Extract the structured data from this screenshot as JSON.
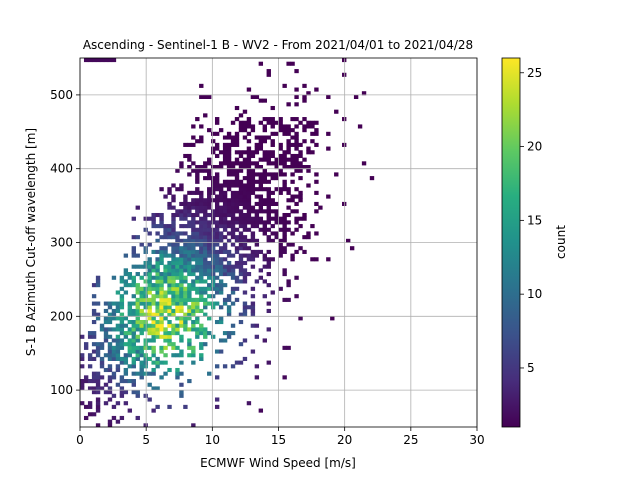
{
  "chart_data": {
    "type": "heatmap",
    "title": "Ascending - Sentinel-1 B - WV2 - From 2021/04/01 to 2021/04/28",
    "xlabel": "ECMWF Wind Speed [m/s]",
    "ylabel": "S-1 B Azimuth Cut-off wavelength [m]",
    "xlim": [
      0,
      30
    ],
    "ylim": [
      50,
      550
    ],
    "xticks": [
      "0",
      "5",
      "10",
      "15",
      "20",
      "25",
      "30"
    ],
    "xtick_values": [
      0,
      5,
      10,
      15,
      20,
      25,
      30
    ],
    "yticks": [
      "100",
      "200",
      "300",
      "400",
      "500"
    ],
    "ytick_values": [
      100,
      200,
      300,
      400,
      500
    ],
    "grid": true,
    "colormap": "viridis",
    "colorbar": {
      "label": "count",
      "range": [
        1,
        26
      ],
      "ticks": [
        "5",
        "10",
        "15",
        "20",
        "25"
      ],
      "tick_values": [
        5,
        10,
        15,
        20,
        25
      ]
    },
    "bin_width_x": 0.3,
    "bin_width_y": 5,
    "density_center": {
      "x": 6.5,
      "y": 200
    },
    "peak_count": 26
  }
}
